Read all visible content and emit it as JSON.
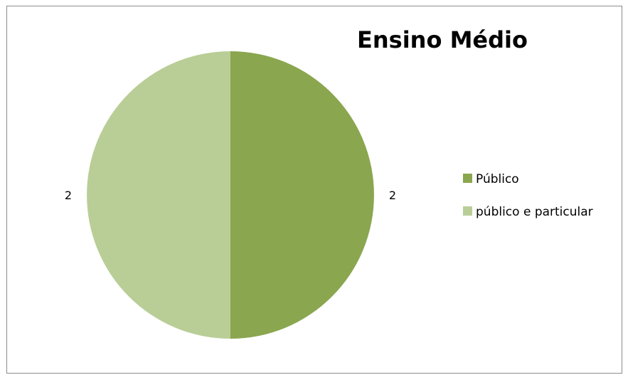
{
  "chart_data": {
    "type": "pie",
    "title": "Ensino Médio",
    "categories": [
      "Público",
      "público e particular"
    ],
    "values": [
      2,
      2
    ],
    "colors": [
      "#8aa64f",
      "#b9ce97"
    ],
    "data_labels": [
      "2",
      "2"
    ],
    "legend": {
      "placement": "right",
      "entries": [
        "Público",
        "público e particular"
      ]
    }
  }
}
